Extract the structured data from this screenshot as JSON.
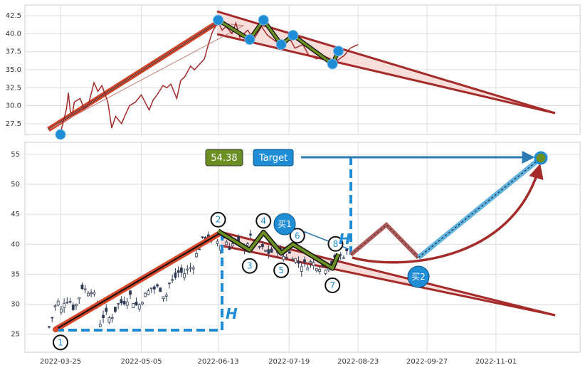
{
  "chart_data": [
    {
      "type": "line",
      "panel": "top",
      "ylim": [
        26,
        44
      ],
      "y_ticks": [
        "27.5",
        "30.0",
        "32.5",
        "35.0",
        "37.5",
        "40.0",
        "42.5"
      ],
      "grid": true,
      "series": [
        {
          "x": [
            "2022-03-25",
            "2022-03-28",
            "2022-03-29",
            "2022-03-30",
            "2022-03-31",
            "2022-04-01",
            "2022-04-04",
            "2022-04-06",
            "2022-04-08",
            "2022-04-11",
            "2022-04-13",
            "2022-04-15",
            "2022-04-18",
            "2022-04-20",
            "2022-04-22",
            "2022-04-25",
            "2022-04-27",
            "2022-04-29",
            "2022-05-02",
            "2022-05-05",
            "2022-05-09",
            "2022-05-11",
            "2022-05-13",
            "2022-05-16",
            "2022-05-18",
            "2022-05-20",
            "2022-05-23",
            "2022-05-25",
            "2022-05-27",
            "2022-05-30",
            "2022-06-01",
            "2022-06-06",
            "2022-06-08",
            "2022-06-10",
            "2022-06-13",
            "2022-06-15",
            "2022-06-17",
            "2022-06-20",
            "2022-06-22",
            "2022-06-24",
            "2022-06-28",
            "2022-07-01",
            "2022-07-05",
            "2022-07-08",
            "2022-07-12",
            "2022-07-15",
            "2022-07-19",
            "2022-07-22",
            "2022-07-26",
            "2022-07-29",
            "2022-08-02",
            "2022-08-05",
            "2022-08-09",
            "2022-08-12",
            "2022-08-16",
            "2022-08-19",
            "2022-08-23"
          ],
          "values": [
            26.2,
            29.5,
            31.8,
            29.2,
            28.8,
            30.5,
            31.0,
            29.5,
            30.0,
            33.2,
            32.0,
            32.8,
            30.5,
            26.9,
            28.5,
            27.5,
            28.8,
            30.0,
            30.5,
            31.5,
            29.4,
            30.8,
            31.5,
            32.8,
            32.5,
            33.0,
            31.0,
            33.5,
            34.0,
            35.5,
            35.0,
            36.5,
            38.5,
            40.2,
            41.7,
            40.5,
            41.0,
            40.0,
            41.5,
            39.5,
            40.5,
            39.2,
            41.0,
            39.8,
            39.0,
            38.5,
            39.5,
            38.0,
            38.5,
            37.0,
            36.5,
            37.0,
            36.5,
            36.2,
            37.0,
            38.0,
            38.5
          ]
        }
      ],
      "pivots": [
        {
          "x": "2022-03-25",
          "y": 26.0
        },
        {
          "x": "2022-06-13",
          "y": 41.9
        },
        {
          "x": "2022-06-29",
          "y": 39.2
        },
        {
          "x": "2022-07-06",
          "y": 41.9
        },
        {
          "x": "2022-07-15",
          "y": 38.5
        },
        {
          "x": "2022-07-21",
          "y": 39.8
        },
        {
          "x": "2022-08-10",
          "y": 35.8
        },
        {
          "x": "2022-08-13",
          "y": 37.6
        }
      ]
    },
    {
      "type": "candlestick",
      "panel": "bottom",
      "ylim": [
        22,
        57
      ],
      "y_ticks": [
        "25",
        "30",
        "35",
        "40",
        "45",
        "50",
        "55"
      ],
      "x_ticks": [
        "2022-03-25",
        "2022-05-05",
        "2022-06-13",
        "2022-07-19",
        "2022-08-23",
        "2022-09-27",
        "2022-11-01"
      ],
      "grid": true,
      "annotations": {
        "value_box": "54.38",
        "target_box": "Target",
        "height_label": "H",
        "height_label_2": "H",
        "buy_1": "买1",
        "buy_2": "买2",
        "wave_points": [
          {
            "label": "1",
            "x": "2022-03-25",
            "y": 26.0
          },
          {
            "label": "2",
            "x": "2022-06-13",
            "y": 42.2
          },
          {
            "label": "3",
            "x": "2022-06-29",
            "y": 39.0
          },
          {
            "label": "4",
            "x": "2022-07-06",
            "y": 42.0
          },
          {
            "label": "5",
            "x": "2022-07-15",
            "y": 38.5
          },
          {
            "label": "6",
            "x": "2022-07-21",
            "y": 40.0
          },
          {
            "label": "7",
            "x": "2022-08-10",
            "y": 36.0
          },
          {
            "label": "8",
            "x": "2022-08-13",
            "y": 38.4
          }
        ],
        "target_price": 54.38,
        "breakout_price": 40.2
      }
    }
  ],
  "colors": {
    "accent_red": "#a52a2a",
    "trend_orange": "#d9472b",
    "wave_green": "#6b8e23",
    "marker_blue": "#1f8dd6",
    "target_blue": "#2a79b3",
    "value_box_green": "#6b8e23",
    "light_fill": "#f6d6d2"
  }
}
